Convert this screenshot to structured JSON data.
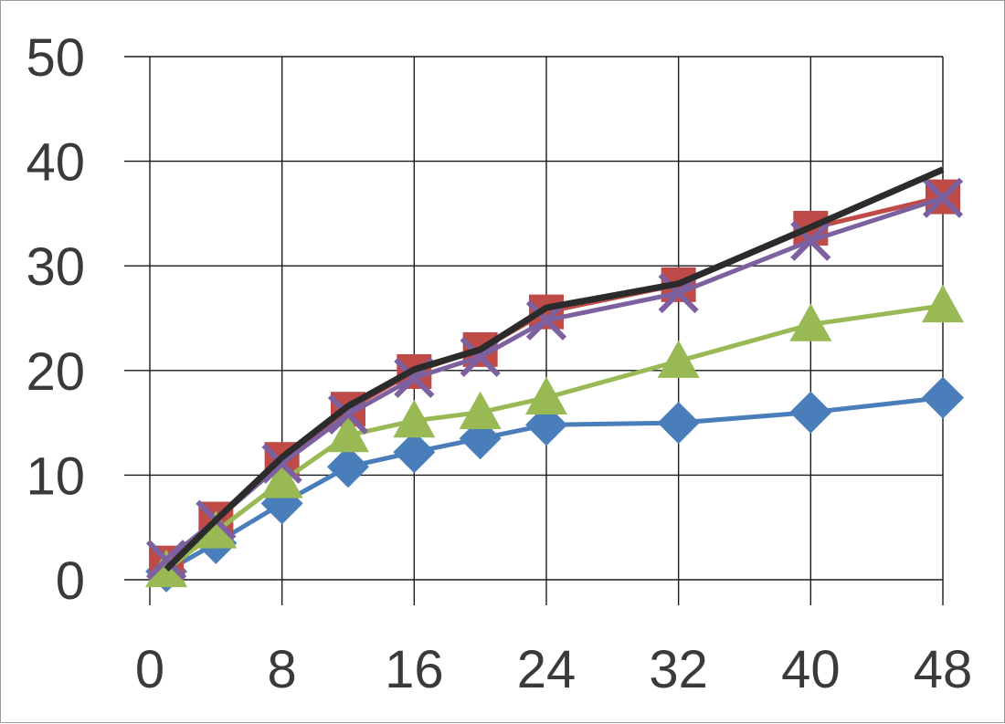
{
  "chart_data": {
    "type": "line",
    "title": "",
    "xlabel": "",
    "ylabel": "",
    "x_ticks": [
      0,
      8,
      16,
      24,
      32,
      40,
      48
    ],
    "y_ticks": [
      0,
      10,
      20,
      30,
      40,
      50
    ],
    "xlim": [
      0,
      48
    ],
    "ylim": [
      0,
      50
    ],
    "grid": true,
    "legend": "none",
    "series": [
      {
        "color": "#4a7ebb",
        "marker": "diamond",
        "x": [
          1,
          4,
          8,
          12,
          16,
          20,
          24,
          32,
          40,
          48
        ],
        "values": [
          0.8,
          3.5,
          7.3,
          10.8,
          12.2,
          13.5,
          14.8,
          15.0,
          16.0,
          17.4
        ]
      },
      {
        "color": "#be4b48",
        "marker": "square",
        "x": [
          1,
          4,
          8,
          12,
          16,
          20,
          24,
          32,
          40,
          48
        ],
        "values": [
          1.6,
          5.8,
          11.5,
          16.3,
          19.9,
          22.0,
          25.6,
          28.2,
          33.6,
          36.6
        ]
      },
      {
        "color": "#98b954",
        "marker": "triangle",
        "x": [
          1,
          4,
          8,
          12,
          16,
          20,
          24,
          32,
          40,
          48
        ],
        "values": [
          0.9,
          4.6,
          9.4,
          13.8,
          15.2,
          16.0,
          17.4,
          20.9,
          24.4,
          26.2
        ]
      },
      {
        "color": "#7d60a0",
        "marker": "x",
        "x": [
          1,
          4,
          8,
          12,
          16,
          20,
          24,
          32,
          40,
          48
        ],
        "values": [
          1.9,
          5.7,
          11.1,
          15.8,
          19.3,
          21.3,
          24.8,
          27.4,
          32.4,
          36.5
        ]
      },
      {
        "color": "#2b2b2b",
        "marker": "none",
        "x": [
          1,
          4,
          8,
          12,
          16,
          20,
          24,
          32,
          40,
          48
        ],
        "values": [
          1.0,
          5.7,
          11.7,
          16.6,
          20.1,
          22.0,
          26.0,
          28.3,
          33.7,
          39.2
        ]
      }
    ]
  }
}
